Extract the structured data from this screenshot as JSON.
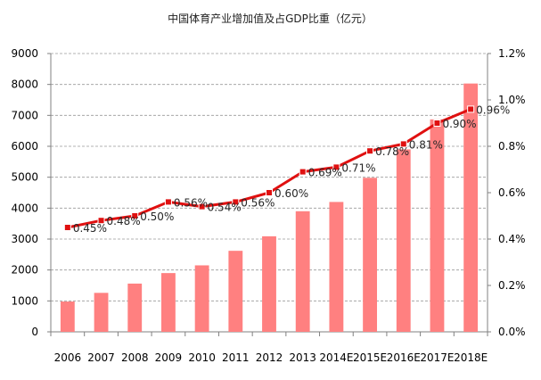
{
  "chart_data": {
    "type": "bar",
    "title": "中国体育产业增加值及占GDP比重（亿元）",
    "xlabel": "",
    "ylabel": "",
    "categories": [
      "2006",
      "2007",
      "2008",
      "2009",
      "2010",
      "2011",
      "2012",
      "2013",
      "2014E",
      "2015E",
      "2016E",
      "2017E",
      "2018E"
    ],
    "series": [
      {
        "name": "体育产业增加值",
        "kind": "bar",
        "axis": "left",
        "color": "#ff8080",
        "values": [
          980,
          1260,
          1560,
          1900,
          2150,
          2620,
          3090,
          3900,
          4200,
          4980,
          5900,
          6870,
          8030
        ]
      },
      {
        "name": "占GDP比重",
        "kind": "line",
        "axis": "right",
        "color": "#e01010",
        "values": [
          0.45,
          0.48,
          0.5,
          0.56,
          0.54,
          0.56,
          0.6,
          0.69,
          0.71,
          0.78,
          0.81,
          0.9,
          0.96
        ],
        "labels": [
          "0.45%",
          "0.48%",
          "0.50%",
          "0.56%",
          "0.54%",
          "0.56%",
          "0.60%",
          "0.69%",
          "0.71%",
          "0.78%",
          "0.81%",
          "0.90%",
          "0.96%"
        ]
      }
    ],
    "ylim": [
      0,
      9000
    ],
    "y_ticks": [
      "0",
      "1000",
      "2000",
      "3000",
      "4000",
      "5000",
      "6000",
      "7000",
      "8000",
      "9000"
    ],
    "y2lim": [
      0,
      1.2
    ],
    "y2_ticks": [
      "0.0%",
      "0.2%",
      "0.4%",
      "0.6%",
      "0.8%",
      "1.0%",
      "1.2%"
    ],
    "grid": true,
    "legend": "none",
    "colors": {
      "grid": "#9a9a9a",
      "axis": "#808080",
      "marker_edge": "#ffffff"
    }
  }
}
